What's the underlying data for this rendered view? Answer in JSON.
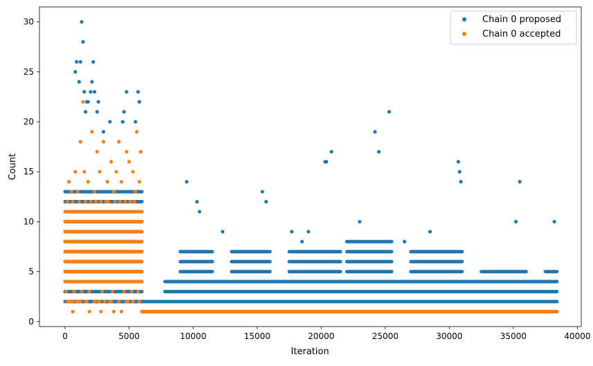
{
  "chart_data": {
    "type": "scatter",
    "title": "",
    "xlabel": "Iteration",
    "ylabel": "Count",
    "xlim": [
      -2000,
      40300
    ],
    "ylim": [
      -0.5,
      31.5
    ],
    "xticks": [
      0,
      5000,
      10000,
      15000,
      20000,
      25000,
      30000,
      35000,
      40000
    ],
    "yticks": [
      0,
      5,
      10,
      15,
      20,
      25,
      30
    ],
    "grid": false,
    "legend_position": "top-right",
    "series": [
      {
        "name": "Chain 0 proposed",
        "color": "#1f77b4",
        "bands": [
          {
            "x_start": 0,
            "x_end": 6000,
            "y_min": 2,
            "y_max": 13
          },
          {
            "x_start": 6000,
            "x_end": 38400,
            "y_min": 1,
            "y_max": 2
          },
          {
            "x_start": 7800,
            "x_end": 38400,
            "y_min": 3,
            "y_max": 4
          },
          {
            "x_start": 9000,
            "x_end": 11500,
            "y_min": 5,
            "y_max": 7
          },
          {
            "x_start": 13000,
            "x_end": 16000,
            "y_min": 5,
            "y_max": 7
          },
          {
            "x_start": 17500,
            "x_end": 21500,
            "y_min": 5,
            "y_max": 7
          },
          {
            "x_start": 22000,
            "x_end": 25500,
            "y_min": 5,
            "y_max": 8
          },
          {
            "x_start": 27000,
            "x_end": 31000,
            "y_min": 5,
            "y_max": 7
          },
          {
            "x_start": 32500,
            "x_end": 36000,
            "y_min": 5,
            "y_max": 5
          },
          {
            "x_start": 37500,
            "x_end": 38400,
            "y_min": 5,
            "y_max": 5
          }
        ],
        "x": [
          1300,
          1400,
          900,
          800,
          1200,
          2200,
          2100,
          1100,
          1500,
          2000,
          2300,
          1700,
          2600,
          1600,
          4800,
          5700,
          1800,
          2500,
          3000,
          4500,
          5800,
          3500,
          4600,
          5500,
          25300,
          24200,
          24500,
          20800,
          20300,
          20400,
          30700,
          30800,
          30900,
          35500,
          15400,
          15700,
          9500,
          10300,
          10500,
          35200,
          38200,
          17700,
          19000,
          23000,
          28500,
          12300,
          18500,
          26500
        ],
        "y": [
          30,
          28,
          26,
          25,
          26,
          26,
          24,
          24,
          23,
          23,
          23,
          22,
          22,
          21,
          23,
          23,
          22,
          21,
          19,
          20,
          22,
          20,
          21,
          20,
          21,
          19,
          17,
          17,
          16,
          16,
          16,
          15,
          14,
          14,
          13,
          12,
          14,
          12,
          11,
          10,
          10,
          9,
          9,
          10,
          9,
          9,
          8,
          8
        ]
      },
      {
        "name": "Chain 0 accepted",
        "color": "#ff7f0e",
        "bands": [
          {
            "x_start": 0,
            "x_end": 6000,
            "y_min": 4,
            "y_max": 11
          },
          {
            "x_start": 6000,
            "x_end": 38400,
            "y_min": 1,
            "y_max": 1
          }
        ],
        "x": [
          1400,
          2100,
          5600,
          3000,
          4200,
          4800,
          1200,
          2500,
          3600,
          5000,
          5900,
          800,
          1500,
          2700,
          4000,
          5300,
          300,
          1800,
          3300,
          4400,
          5800,
          500,
          1000,
          2300,
          3800,
          5500,
          200,
          600,
          1100,
          1600,
          2000,
          2400,
          2800,
          3200,
          3400,
          3900,
          4300,
          4700,
          5100,
          5400,
          100,
          700,
          1300,
          1900,
          2900,
          3700,
          4600,
          5200,
          5700,
          900,
          1700,
          2600,
          3500,
          4900,
          600,
          1900,
          2800,
          3800,
          4400,
          200,
          400,
          600,
          1000,
          1200,
          1600,
          2300,
          2700,
          3100,
          3600,
          4200,
          4800,
          5300,
          5800
        ],
        "y": [
          22,
          19,
          19,
          18,
          18,
          17,
          18,
          17,
          16,
          16,
          17,
          15,
          15,
          15,
          15,
          15,
          14,
          14,
          14,
          14,
          14,
          13,
          13,
          13,
          13,
          13,
          12,
          12,
          12,
          12,
          12,
          12,
          12,
          12,
          12,
          12,
          12,
          12,
          12,
          12,
          3,
          3,
          3,
          3,
          3,
          3,
          3,
          3,
          3,
          2,
          2,
          2,
          2,
          2,
          1,
          1,
          1,
          1,
          1,
          2,
          2,
          2,
          2,
          2,
          2,
          2,
          2,
          2,
          2,
          2,
          2,
          2,
          2
        ]
      }
    ]
  }
}
